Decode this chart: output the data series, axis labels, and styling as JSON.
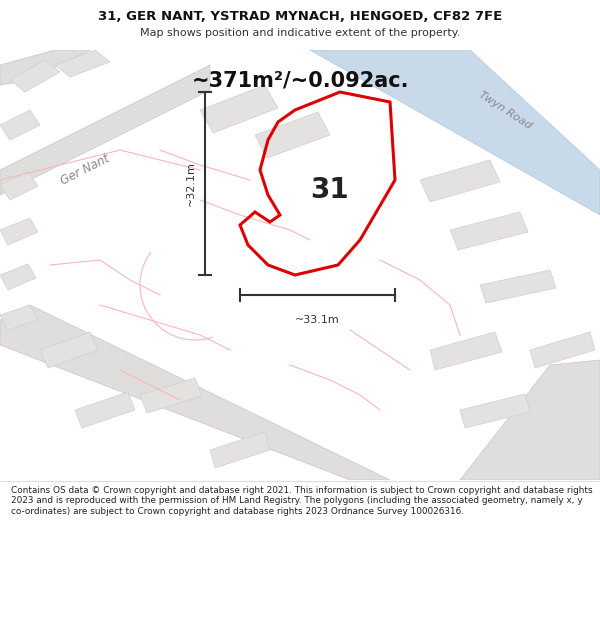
{
  "title_line1": "31, GER NANT, YSTRAD MYNACH, HENGOED, CF82 7FE",
  "title_line2": "Map shows position and indicative extent of the property.",
  "area_text": "~371m²/~0.092ac.",
  "label_number": "31",
  "dim_horizontal": "~33.1m",
  "dim_vertical": "~32.1m",
  "road_label_1": "Twyn Road",
  "road_label_2": "Ger Nant",
  "footer_text": "Contains OS data © Crown copyright and database right 2021. This information is subject to Crown copyright and database rights 2023 and is reproduced with the permission of HM Land Registry. The polygons (including the associated geometry, namely x, y co-ordinates) are subject to Crown copyright and database rights 2023 Ordnance Survey 100026316.",
  "map_bg": "#f0efee",
  "road_fill": "#e0dedd",
  "blue_road_fill": "#c8daea",
  "blue_road_edge": "#b0c8e0",
  "plot_stroke": "#dd0000",
  "other_stroke": "#f5b8b8",
  "building_fill": "#e4e2e0",
  "building_stroke": "#d0cece",
  "footer_bg": "#ffffff",
  "title_bg": "#ffffff",
  "dim_line_color": "#333333",
  "label_color": "#222222",
  "road_label_color": "#888888"
}
